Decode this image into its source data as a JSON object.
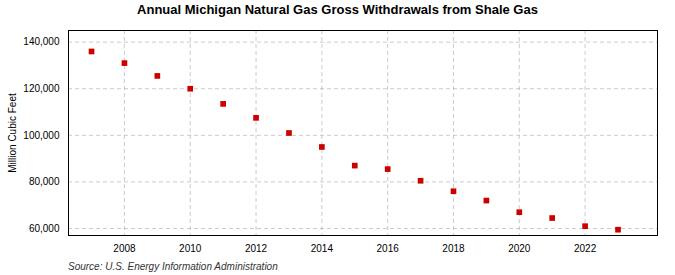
{
  "chart_data": {
    "type": "scatter",
    "title": "Annual Michigan Natural Gas Gross Withdrawals from Shale Gas",
    "ylabel": "Million Cubic Feet",
    "source": "Source: U.S. Energy Information Administration",
    "x": [
      2007,
      2008,
      2009,
      2010,
      2011,
      2012,
      2013,
      2014,
      2015,
      2016,
      2017,
      2018,
      2019,
      2020,
      2021,
      2022,
      2023
    ],
    "values": [
      136000,
      131000,
      125500,
      120000,
      113500,
      107500,
      101000,
      95000,
      87000,
      85500,
      80500,
      76000,
      72000,
      67000,
      64500,
      61000,
      59500
    ],
    "color": "#cc0000",
    "marker": "square",
    "xlim": [
      2006.3,
      2024.2
    ],
    "xticks": [
      2008,
      2010,
      2012,
      2014,
      2016,
      2018,
      2020,
      2022
    ],
    "ylim": [
      57000,
      145000
    ],
    "yticks": [
      {
        "value": 60000,
        "label": "60,000"
      },
      {
        "value": 80000,
        "label": "80,000"
      },
      {
        "value": 100000,
        "label": "100,000"
      },
      {
        "value": 120000,
        "label": "120,000"
      },
      {
        "value": 140000,
        "label": "140,000"
      }
    ],
    "grid": true
  }
}
